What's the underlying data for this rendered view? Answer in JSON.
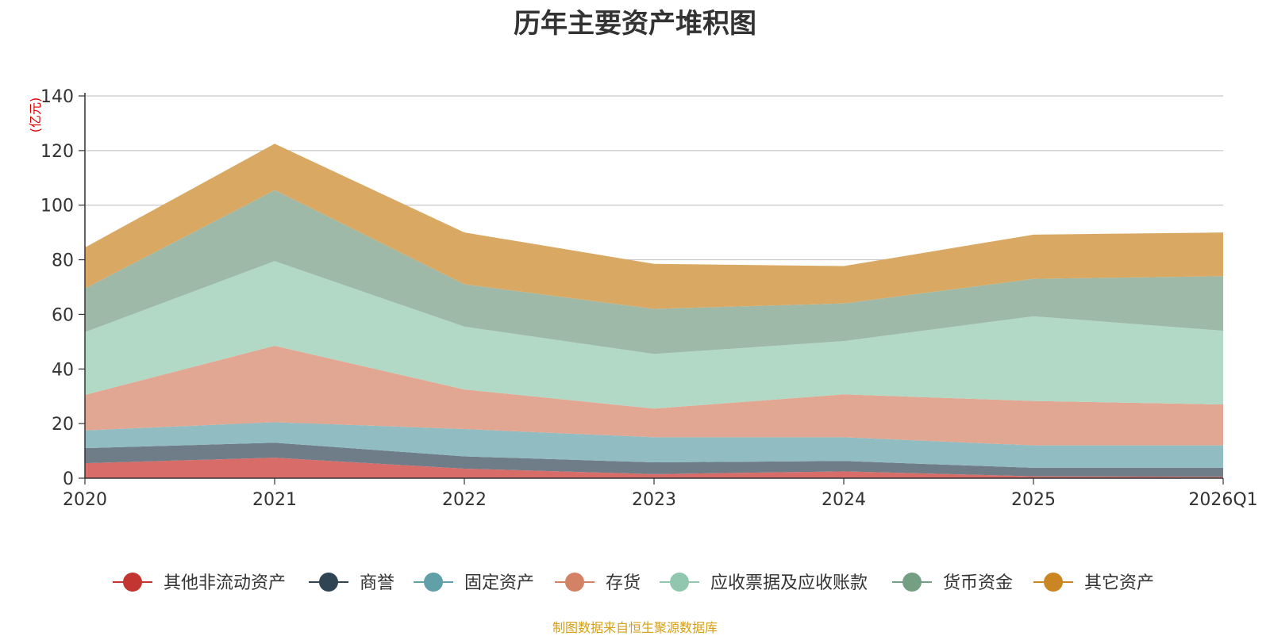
{
  "chart_data": {
    "type": "area",
    "stacked": true,
    "title": "历年主要资产堆积图",
    "ylabel": "(亿元)",
    "xlabel": "",
    "categories": [
      "2020",
      "2021",
      "2022",
      "2023",
      "2024",
      "2025",
      "2026Q1"
    ],
    "ylim": [
      0,
      140
    ],
    "yticks": [
      0,
      20,
      40,
      60,
      80,
      100,
      120,
      140
    ],
    "grid": true,
    "legend_position": "bottom",
    "series": [
      {
        "name": "其他非流动资产",
        "color": "#c23531",
        "area_color": "#d86c69",
        "values": [
          5.5,
          7.5,
          3.5,
          1.5,
          2.5,
          0.7,
          0.5
        ]
      },
      {
        "name": "商誉",
        "color": "#2f4554",
        "area_color": "#6e7d87",
        "values": [
          5.5,
          5.5,
          4.5,
          4.3,
          3.8,
          3.1,
          3.3
        ]
      },
      {
        "name": "固定资产",
        "color": "#61a0a8",
        "area_color": "#90bcc2",
        "values": [
          6.5,
          7.5,
          10.0,
          9.2,
          8.7,
          8.2,
          8.2
        ]
      },
      {
        "name": "存货",
        "color": "#d48265",
        "area_color": "#e1a792",
        "values": [
          13.0,
          28.0,
          14.5,
          10.5,
          15.7,
          16.3,
          15.0
        ]
      },
      {
        "name": "应收票据及应收账款",
        "color": "#91c7ae",
        "area_color": "#b2d9c6",
        "values": [
          23.0,
          31.0,
          23.0,
          20.0,
          19.5,
          31.0,
          27.0
        ]
      },
      {
        "name": "货币资金",
        "color": "#749f83",
        "area_color": "#9eb9a7",
        "values": [
          16.0,
          26.0,
          15.5,
          16.5,
          13.8,
          13.7,
          20.0
        ]
      },
      {
        "name": "其它资产",
        "color": "#ca8622",
        "area_color": "#d9a964",
        "values": [
          15.0,
          17.0,
          19.0,
          16.5,
          13.7,
          16.2,
          16.0
        ]
      }
    ]
  },
  "source_note": "制图数据来自恒生聚源数据库"
}
